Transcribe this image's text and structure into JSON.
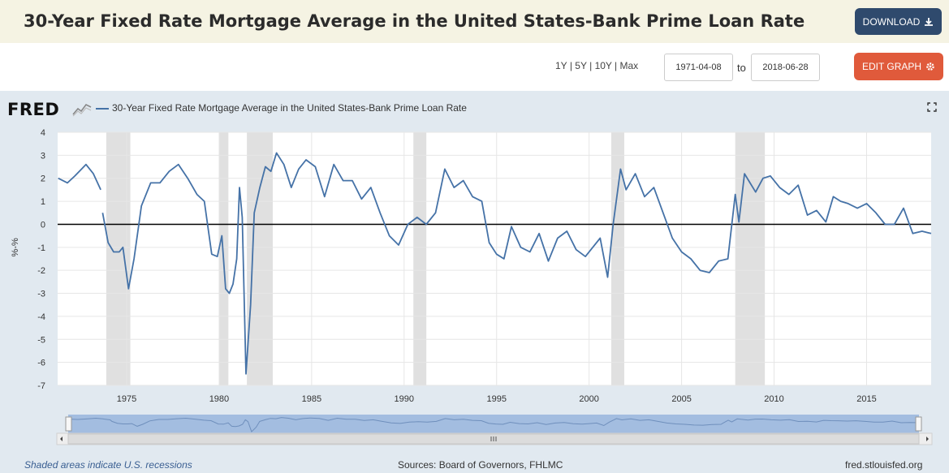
{
  "header": {
    "title": "30-Year Fixed Rate Mortgage Average in the United States-Bank Prime Loan Rate",
    "download_label": "DOWNLOAD"
  },
  "controls": {
    "range_1y": "1Y",
    "range_5y": "5Y",
    "range_10y": "10Y",
    "range_max": "Max",
    "sep": "|",
    "start_date": "1971-04-08",
    "to_label": "to",
    "end_date": "2018-06-28",
    "edit_graph_label": "EDIT GRAPH"
  },
  "logo_text": "FRED",
  "icons": {
    "download": "download-arrow-icon",
    "settings": "gear-icon",
    "expand": "fullscreen-icon",
    "scroll_left": "arrow-left-icon",
    "scroll_right": "arrow-right-icon",
    "grip": "grip-icon"
  },
  "colors": {
    "series": "#4572a7",
    "recession": "#e0e0e0",
    "header_bg": "#f5f3e3",
    "panel_bg": "#e1e9f0",
    "download_btn": "#2f4a6d",
    "edit_btn": "#e05a3b"
  },
  "footer": {
    "recession_note": "Shaded areas indicate U.S. recessions",
    "sources": "Sources: Board of Governors, FHLMC",
    "site": "fred.stlouisfed.org"
  },
  "chart_data": {
    "type": "line",
    "title": "",
    "ylabel": "%-%",
    "xlabel": "",
    "xlim": [
      1971.27,
      2018.49
    ],
    "ylim": [
      -7,
      4
    ],
    "yticks": [
      4,
      3,
      2,
      1,
      0,
      -1,
      -2,
      -3,
      -4,
      -5,
      -6,
      -7
    ],
    "xticks": [
      1975,
      1980,
      1985,
      1990,
      1995,
      2000,
      2005,
      2010,
      2015
    ],
    "legend": "top-left",
    "grid": true,
    "zero_line": true,
    "recessions": [
      [
        1973.9,
        1975.2
      ],
      [
        1980.0,
        1980.5
      ],
      [
        1981.5,
        1982.9
      ],
      [
        1990.5,
        1991.2
      ],
      [
        2001.2,
        2001.9
      ],
      [
        2007.9,
        2009.5
      ]
    ],
    "series": [
      {
        "name": "30-Year Fixed Rate Mortgage Average in the United States-Bank Prime Loan Rate",
        "gaps": [
          [
            1973.6,
            1973.7
          ]
        ],
        "x": [
          1971.3,
          1971.8,
          1972.2,
          1972.8,
          1973.2,
          1973.6,
          1973.7,
          1974.0,
          1974.3,
          1974.6,
          1974.8,
          1975.1,
          1975.4,
          1975.8,
          1976.3,
          1976.8,
          1977.3,
          1977.8,
          1978.3,
          1978.8,
          1979.2,
          1979.6,
          1979.9,
          1980.15,
          1980.35,
          1980.55,
          1980.75,
          1980.95,
          1981.1,
          1981.25,
          1981.45,
          1981.7,
          1981.9,
          1982.2,
          1982.5,
          1982.8,
          1983.1,
          1983.5,
          1983.9,
          1984.3,
          1984.7,
          1985.2,
          1985.7,
          1986.2,
          1986.7,
          1987.2,
          1987.7,
          1988.2,
          1988.7,
          1989.2,
          1989.7,
          1990.2,
          1990.7,
          1991.2,
          1991.7,
          1992.2,
          1992.7,
          1993.2,
          1993.7,
          1994.2,
          1994.6,
          1995.0,
          1995.4,
          1995.8,
          1996.3,
          1996.8,
          1997.3,
          1997.8,
          1998.3,
          1998.8,
          1999.3,
          1999.8,
          2000.2,
          2000.6,
          2001.0,
          2001.3,
          2001.7,
          2002.0,
          2002.5,
          2003.0,
          2003.5,
          2004.0,
          2004.5,
          2005.0,
          2005.5,
          2006.0,
          2006.5,
          2007.0,
          2007.5,
          2007.9,
          2008.1,
          2008.4,
          2008.7,
          2009.0,
          2009.4,
          2009.8,
          2010.3,
          2010.8,
          2011.3,
          2011.8,
          2012.3,
          2012.8,
          2013.2,
          2013.6,
          2014.0,
          2014.5,
          2015.0,
          2015.5,
          2016.0,
          2016.5,
          2017.0,
          2017.5,
          2018.0,
          2018.49
        ],
        "y": [
          2.0,
          1.8,
          2.1,
          2.6,
          2.2,
          1.5,
          0.5,
          -0.8,
          -1.2,
          -1.2,
          -1.0,
          -2.8,
          -1.5,
          0.8,
          1.8,
          1.8,
          2.3,
          2.6,
          2.0,
          1.3,
          1.0,
          -1.3,
          -1.4,
          -0.5,
          -2.8,
          -3.0,
          -2.6,
          -1.5,
          1.6,
          0.3,
          -6.5,
          -3.5,
          0.5,
          1.6,
          2.5,
          2.3,
          3.1,
          2.6,
          1.6,
          2.4,
          2.8,
          2.5,
          1.2,
          2.6,
          1.9,
          1.9,
          1.1,
          1.6,
          0.5,
          -0.5,
          -0.9,
          0.0,
          0.3,
          0.0,
          0.5,
          2.4,
          1.6,
          1.9,
          1.2,
          1.0,
          -0.8,
          -1.3,
          -1.5,
          -0.1,
          -1.0,
          -1.2,
          -0.4,
          -1.6,
          -0.6,
          -0.3,
          -1.1,
          -1.4,
          -1.0,
          -0.6,
          -2.3,
          0.0,
          2.4,
          1.5,
          2.2,
          1.2,
          1.6,
          0.5,
          -0.6,
          -1.2,
          -1.5,
          -2.0,
          -2.1,
          -1.6,
          -1.5,
          1.3,
          0.1,
          2.2,
          1.8,
          1.4,
          2.0,
          2.1,
          1.6,
          1.3,
          1.7,
          0.4,
          0.6,
          0.1,
          1.2,
          1.0,
          0.9,
          0.7,
          0.9,
          0.5,
          0.0,
          0.0,
          0.7,
          -0.4,
          -0.3,
          -0.4
        ]
      }
    ]
  }
}
